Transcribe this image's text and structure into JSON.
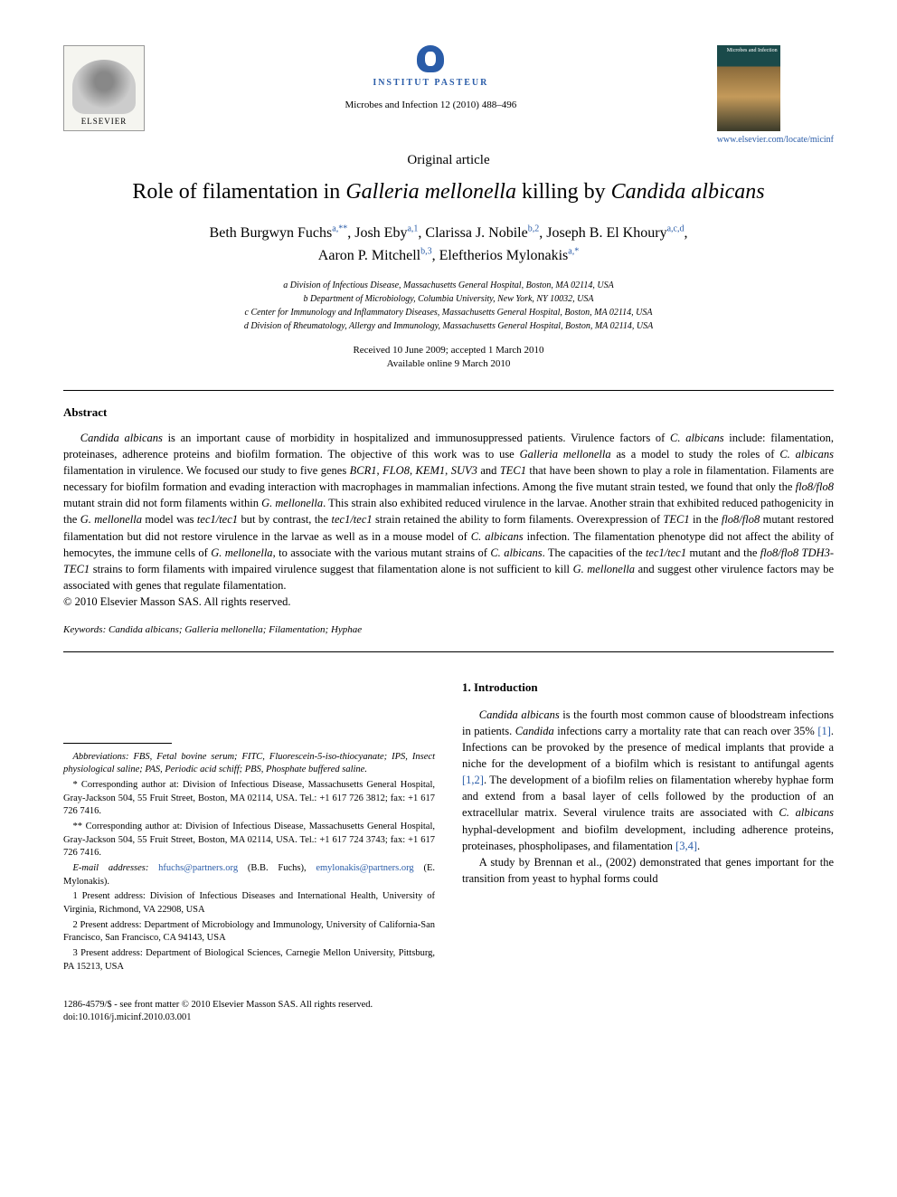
{
  "header": {
    "elsevier_label": "ELSEVIER",
    "pasteur_label": "INSTITUT PASTEUR",
    "journal_cover_title": "Microbes and Infection",
    "journal_url": "www.elsevier.com/locate/micinf",
    "citation": "Microbes and Infection 12 (2010) 488–496"
  },
  "article": {
    "type": "Original article",
    "title_pre": "Role of filamentation in ",
    "title_i1": "Galleria mellonella",
    "title_mid": " killing by ",
    "title_i2": "Candida albicans",
    "authors_line1": "Beth Burgwyn Fuchs",
    "a1_sup": "a,**",
    "a2": ", Josh Eby",
    "a2_sup": "a,1",
    "a3": ", Clarissa J. Nobile",
    "a3_sup": "b,2",
    "a4": ", Joseph B. El Khoury",
    "a4_sup": "a,c,d",
    "a5": "Aaron P. Mitchell",
    "a5_sup": "b,3",
    "a6": ", Eleftherios Mylonakis",
    "a6_sup": "a,*",
    "affil_a": "a Division of Infectious Disease, Massachusetts General Hospital, Boston, MA 02114, USA",
    "affil_b": "b Department of Microbiology, Columbia University, New York, NY 10032, USA",
    "affil_c": "c Center for Immunology and Inflammatory Diseases, Massachusetts General Hospital, Boston, MA 02114, USA",
    "affil_d": "d Division of Rheumatology, Allergy and Immunology, Massachusetts General Hospital, Boston, MA 02114, USA",
    "date_received": "Received 10 June 2009; accepted 1 March 2010",
    "date_online": "Available online 9 March 2010"
  },
  "abstract": {
    "label": "Abstract",
    "text_parts": [
      {
        "i": true,
        "t": "Candida albicans"
      },
      {
        "i": false,
        "t": " is an important cause of morbidity in hospitalized and immunosuppressed patients. Virulence factors of "
      },
      {
        "i": true,
        "t": "C. albicans"
      },
      {
        "i": false,
        "t": " include: filamentation, proteinases, adherence proteins and biofilm formation. The objective of this work was to use "
      },
      {
        "i": true,
        "t": "Galleria mellonella"
      },
      {
        "i": false,
        "t": " as a model to study the roles of "
      },
      {
        "i": true,
        "t": "C. albicans"
      },
      {
        "i": false,
        "t": " filamentation in virulence. We focused our study to five genes "
      },
      {
        "i": true,
        "t": "BCR1"
      },
      {
        "i": false,
        "t": ", "
      },
      {
        "i": true,
        "t": "FLO8"
      },
      {
        "i": false,
        "t": ", "
      },
      {
        "i": true,
        "t": "KEM1"
      },
      {
        "i": false,
        "t": ", "
      },
      {
        "i": true,
        "t": "SUV3"
      },
      {
        "i": false,
        "t": " and "
      },
      {
        "i": true,
        "t": "TEC1"
      },
      {
        "i": false,
        "t": " that have been shown to play a role in filamentation. Filaments are necessary for biofilm formation and evading interaction with macrophages in mammalian infections. Among the five mutant strain tested, we found that only the "
      },
      {
        "i": true,
        "t": "flo8/flo8"
      },
      {
        "i": false,
        "t": " mutant strain did not form filaments within "
      },
      {
        "i": true,
        "t": "G. mellonella"
      },
      {
        "i": false,
        "t": ". This strain also exhibited reduced virulence in the larvae. Another strain that exhibited reduced pathogenicity in the "
      },
      {
        "i": true,
        "t": "G. mellonella"
      },
      {
        "i": false,
        "t": " model was "
      },
      {
        "i": true,
        "t": "tec1/tec1"
      },
      {
        "i": false,
        "t": " but by contrast, the "
      },
      {
        "i": true,
        "t": "tec1/tec1"
      },
      {
        "i": false,
        "t": " strain retained the ability to form filaments. Overexpression of "
      },
      {
        "i": true,
        "t": "TEC1"
      },
      {
        "i": false,
        "t": " in the "
      },
      {
        "i": true,
        "t": "flo8/flo8"
      },
      {
        "i": false,
        "t": " mutant restored filamentation but did not restore virulence in the larvae as well as in a mouse model of "
      },
      {
        "i": true,
        "t": "C. albicans"
      },
      {
        "i": false,
        "t": " infection. The filamentation phenotype did not affect the ability of hemocytes, the immune cells of "
      },
      {
        "i": true,
        "t": "G. mellonella"
      },
      {
        "i": false,
        "t": ", to associate with the various mutant strains of "
      },
      {
        "i": true,
        "t": "C. albicans"
      },
      {
        "i": false,
        "t": ". The capacities of the "
      },
      {
        "i": true,
        "t": "tec1/tec1"
      },
      {
        "i": false,
        "t": " mutant and the "
      },
      {
        "i": true,
        "t": "flo8/flo8 TDH3-TEC1"
      },
      {
        "i": false,
        "t": " strains to form filaments with impaired virulence suggest that filamentation alone is not sufficient to kill "
      },
      {
        "i": true,
        "t": "G. mellonella"
      },
      {
        "i": false,
        "t": " and suggest other virulence factors may be associated with genes that regulate filamentation."
      }
    ],
    "copyright": "© 2010 Elsevier Masson SAS. All rights reserved.",
    "keywords_label": "Keywords:",
    "keywords": " Candida albicans; Galleria mellonella; Filamentation; Hyphae"
  },
  "footnotes": {
    "abbrev": "Abbreviations: FBS, Fetal bovine serum; FITC, Fluorescein-5-iso-thiocyanate; IPS, Insect physiological saline; PAS, Periodic acid schiff; PBS, Phosphate buffered saline.",
    "corr1": "* Corresponding author at: Division of Infectious Disease, Massachusetts General Hospital, Gray-Jackson 504, 55 Fruit Street, Boston, MA 02114, USA. Tel.: +1 617 726 3812; fax: +1 617 726 7416.",
    "corr2": "** Corresponding author at: Division of Infectious Disease, Massachusetts General Hospital, Gray-Jackson 504, 55 Fruit Street, Boston, MA 02114, USA. Tel.: +1 617 724 3743; fax: +1 617 726 7416.",
    "email_label": "E-mail addresses: ",
    "email1": "hfuchs@partners.org",
    "email1_who": " (B.B. Fuchs), ",
    "email2": "emylonakis@partners.org",
    "email2_who": " (E. Mylonakis).",
    "fn1": "1 Present address: Division of Infectious Diseases and International Health, University of Virginia, Richmond, VA 22908, USA",
    "fn2": "2 Present address: Department of Microbiology and Immunology, University of California-San Francisco, San Francisco, CA 94143, USA",
    "fn3": "3 Present address: Department of Biological Sciences, Carnegie Mellon University, Pittsburg, PA 15213, USA"
  },
  "intro": {
    "heading": "1. Introduction",
    "p1_parts": [
      {
        "i": true,
        "t": "Candida albicans"
      },
      {
        "i": false,
        "t": " is the fourth most common cause of bloodstream infections in patients. "
      },
      {
        "i": true,
        "t": "Candida"
      },
      {
        "i": false,
        "t": " infections carry a mortality rate that can reach over 35% "
      },
      {
        "ref": true,
        "t": "[1]"
      },
      {
        "i": false,
        "t": ". Infections can be provoked by the presence of medical implants that provide a niche for the development of a biofilm which is resistant to antifungal agents "
      },
      {
        "ref": true,
        "t": "[1,2]"
      },
      {
        "i": false,
        "t": ". The development of a biofilm relies on filamentation whereby hyphae form and extend from a basal layer of cells followed by the production of an extracellular matrix. Several virulence traits are associated with "
      },
      {
        "i": true,
        "t": "C. albicans"
      },
      {
        "i": false,
        "t": " hyphal-development and biofilm development, including adherence proteins, proteinases, phospholipases, and filamentation "
      },
      {
        "ref": true,
        "t": "[3,4]"
      },
      {
        "i": false,
        "t": "."
      }
    ],
    "p2": "A study by Brennan et al., (2002) demonstrated that genes important for the transition from yeast to hyphal forms could"
  },
  "footer": {
    "line1": "1286-4579/$ - see front matter © 2010 Elsevier Masson SAS. All rights reserved.",
    "line2": "doi:10.1016/j.micinf.2010.03.001"
  },
  "colors": {
    "link": "#2a5ca8",
    "text": "#000000",
    "bg": "#ffffff"
  }
}
